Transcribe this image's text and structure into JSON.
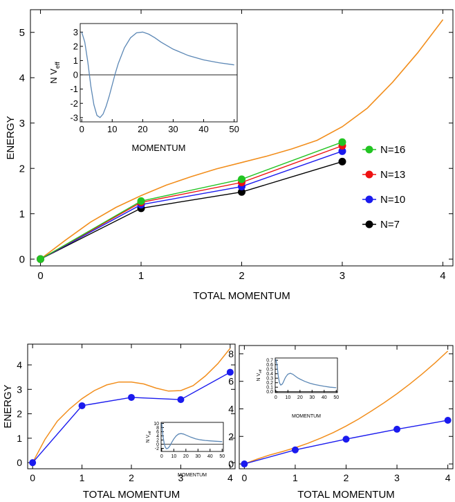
{
  "colors": {
    "orange": "#f28e1c",
    "green": "#22c422",
    "red": "#ee1111",
    "blue": "#1a1aee",
    "black": "#000000",
    "inset_curve": "#5b87b5"
  },
  "chart_data": [
    {
      "id": "main",
      "type": "line",
      "xlabel": "TOTAL MOMENTUM",
      "ylabel": "ENERGY",
      "xlim": [
        -0.1,
        4.1
      ],
      "ylim": [
        -0.15,
        5.5
      ],
      "xticks": [
        "0",
        "1",
        "2",
        "3",
        "4"
      ],
      "yticks": [
        "0",
        "1",
        "2",
        "3",
        "4",
        "5"
      ],
      "legend_position": "right",
      "series": [
        {
          "name": "N=16",
          "color_key": "green",
          "x": [
            0,
            1,
            2,
            3
          ],
          "y": [
            0,
            1.28,
            1.76,
            2.58
          ]
        },
        {
          "name": "N=13",
          "color_key": "red",
          "x": [
            0,
            1,
            2,
            3
          ],
          "y": [
            0,
            1.25,
            1.69,
            2.5
          ]
        },
        {
          "name": "N=10",
          "color_key": "blue",
          "x": [
            0,
            1,
            2,
            3
          ],
          "y": [
            0,
            1.2,
            1.6,
            2.38
          ]
        },
        {
          "name": "N=7",
          "color_key": "black",
          "x": [
            0,
            1,
            2,
            3
          ],
          "y": [
            0,
            1.12,
            1.48,
            2.15
          ]
        }
      ],
      "curve": {
        "color_key": "orange",
        "x": [
          0,
          0.25,
          0.5,
          0.75,
          1,
          1.25,
          1.5,
          1.75,
          2,
          2.25,
          2.5,
          2.75,
          3,
          3.25,
          3.5,
          3.75,
          4
        ],
        "y": [
          0,
          0.42,
          0.82,
          1.14,
          1.4,
          1.63,
          1.82,
          1.99,
          2.13,
          2.27,
          2.43,
          2.62,
          2.92,
          3.33,
          3.9,
          4.55,
          5.28
        ]
      },
      "inset": {
        "xlabel": "MOMENTUM",
        "ylabel": "N V",
        "ylabel_sub": "eff",
        "xlim": [
          -0.5,
          51
        ],
        "ylim": [
          -3.3,
          3.6
        ],
        "xticks": [
          "0",
          "10",
          "20",
          "30",
          "40",
          "50"
        ],
        "yticks": [
          "-3",
          "-2",
          "-1",
          "0",
          "1",
          "2",
          "3"
        ],
        "x": [
          0,
          1,
          2,
          3,
          4,
          5,
          6,
          7,
          8,
          9,
          10,
          11,
          12,
          14,
          16,
          18,
          20,
          22,
          24,
          26,
          30,
          35,
          40,
          45,
          50
        ],
        "y": [
          3,
          2.3,
          0.9,
          -0.8,
          -2.1,
          -2.85,
          -3.0,
          -2.75,
          -2.2,
          -1.5,
          -0.7,
          0.1,
          0.8,
          1.9,
          2.6,
          2.95,
          3.0,
          2.85,
          2.6,
          2.3,
          1.8,
          1.35,
          1.05,
          0.85,
          0.7
        ]
      }
    },
    {
      "id": "bottom-left",
      "type": "line",
      "xlabel": "TOTAL MOMENTUM",
      "ylabel": "ENERGY",
      "xlim": [
        -0.1,
        4.1
      ],
      "ylim": [
        -0.25,
        4.85
      ],
      "xticks": [
        "0",
        "1",
        "2",
        "3",
        "4"
      ],
      "yticks": [
        "0",
        "1",
        "2",
        "3",
        "4"
      ],
      "series": [
        {
          "color_key": "blue",
          "x": [
            0,
            1,
            2,
            3,
            4
          ],
          "y": [
            0,
            2.33,
            2.67,
            2.58,
            3.7
          ]
        }
      ],
      "curve": {
        "color_key": "orange",
        "x": [
          0,
          0.25,
          0.5,
          0.75,
          1,
          1.25,
          1.5,
          1.75,
          2,
          2.25,
          2.5,
          2.75,
          3,
          3.25,
          3.5,
          3.75,
          4
        ],
        "y": [
          0,
          0.95,
          1.7,
          2.2,
          2.62,
          2.95,
          3.18,
          3.3,
          3.3,
          3.22,
          3.05,
          2.93,
          2.95,
          3.15,
          3.55,
          4.05,
          4.68
        ]
      },
      "inset": {
        "xlabel": "MOMENTUM",
        "ylabel": "N V",
        "ylabel_sub": "eff",
        "xlim": [
          -0.5,
          51
        ],
        "ylim": [
          -3.5,
          10.5
        ],
        "xticks": [
          "0",
          "10",
          "20",
          "30",
          "40",
          "50"
        ],
        "yticks": [
          "-2",
          "0",
          "2",
          "4",
          "6",
          "8",
          "10"
        ],
        "x": [
          0,
          1,
          2,
          3,
          4,
          5,
          6,
          7,
          8,
          10,
          12,
          14,
          16,
          18,
          20,
          24,
          28,
          32,
          36,
          40,
          45,
          50
        ],
        "y": [
          10,
          4,
          0.5,
          -1.5,
          -2.2,
          -2.0,
          -1.4,
          -0.5,
          0.6,
          2.5,
          4.0,
          4.9,
          5.1,
          4.9,
          4.4,
          3.4,
          2.6,
          2.1,
          1.8,
          1.6,
          1.4,
          1.25
        ]
      }
    },
    {
      "id": "bottom-right",
      "type": "line",
      "xlabel": "TOTAL MOMENTUM",
      "ylabel": "",
      "xlim": [
        -0.1,
        4.1
      ],
      "ylim": [
        -0.35,
        8.6
      ],
      "xticks": [
        "0",
        "1",
        "2",
        "3",
        "4"
      ],
      "yticks": [
        "0",
        "2",
        "4",
        "6",
        "8"
      ],
      "series": [
        {
          "color_key": "blue",
          "x": [
            0,
            1,
            2,
            3,
            4
          ],
          "y": [
            0,
            1.02,
            1.8,
            2.52,
            3.17
          ]
        }
      ],
      "curve": {
        "color_key": "orange",
        "x": [
          0,
          0.25,
          0.5,
          0.75,
          1,
          1.25,
          1.5,
          1.75,
          2,
          2.25,
          2.5,
          2.75,
          3,
          3.25,
          3.5,
          3.75,
          4
        ],
        "y": [
          0,
          0.35,
          0.65,
          0.9,
          1.18,
          1.5,
          1.87,
          2.28,
          2.75,
          3.27,
          3.85,
          4.45,
          5.1,
          5.8,
          6.55,
          7.35,
          8.2
        ]
      },
      "inset": {
        "xlabel": "MOMENTUM",
        "ylabel": "N V",
        "ylabel_sub": "eff",
        "xlim": [
          -0.5,
          51
        ],
        "ylim": [
          -0.02,
          0.75
        ],
        "xticks": [
          "0",
          "10",
          "20",
          "30",
          "40",
          "50"
        ],
        "yticks": [
          "0.0",
          "0.1",
          "0.2",
          "0.3",
          "0.4",
          "0.5",
          "0.6",
          "0.7"
        ],
        "x": [
          0,
          1,
          2,
          3,
          4,
          5,
          6,
          7,
          8,
          10,
          12,
          14,
          16,
          18,
          20,
          24,
          28,
          32,
          36,
          40,
          45,
          50
        ],
        "y": [
          0.72,
          0.6,
          0.35,
          0.2,
          0.15,
          0.16,
          0.2,
          0.26,
          0.32,
          0.39,
          0.41,
          0.39,
          0.35,
          0.31,
          0.28,
          0.23,
          0.19,
          0.16,
          0.14,
          0.12,
          0.1,
          0.09
        ]
      }
    }
  ]
}
